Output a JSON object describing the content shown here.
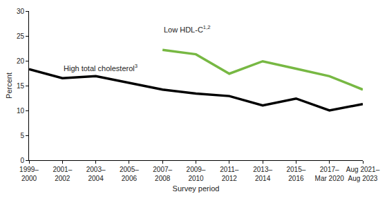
{
  "chart_data": {
    "type": "line",
    "x_label": "Survey period",
    "y_label": "Percent",
    "categories": [
      "1999–2000",
      "2001–2002",
      "2003–2004",
      "2005–2006",
      "2007–2008",
      "2009–2010",
      "2011–2012",
      "2013–2014",
      "2015–2016",
      "2017–Mar 2020",
      "Aug 2021–Aug 2023"
    ],
    "series": [
      {
        "name": "Low HDL-C",
        "superscript": "1,2",
        "color": "#77b843",
        "values": [
          null,
          null,
          null,
          null,
          22.2,
          21.3,
          17.4,
          19.9,
          18.4,
          16.9,
          14.2
        ]
      },
      {
        "name": "High total cholesterol",
        "superscript": "3",
        "color": "#000000",
        "values": [
          18.3,
          16.5,
          16.9,
          15.6,
          14.2,
          13.4,
          12.9,
          11.0,
          12.4,
          10.0,
          11.3
        ]
      }
    ],
    "ylim": [
      0,
      30
    ],
    "yticks": [
      0,
      5,
      10,
      15,
      20,
      25,
      30
    ],
    "grid": false
  }
}
